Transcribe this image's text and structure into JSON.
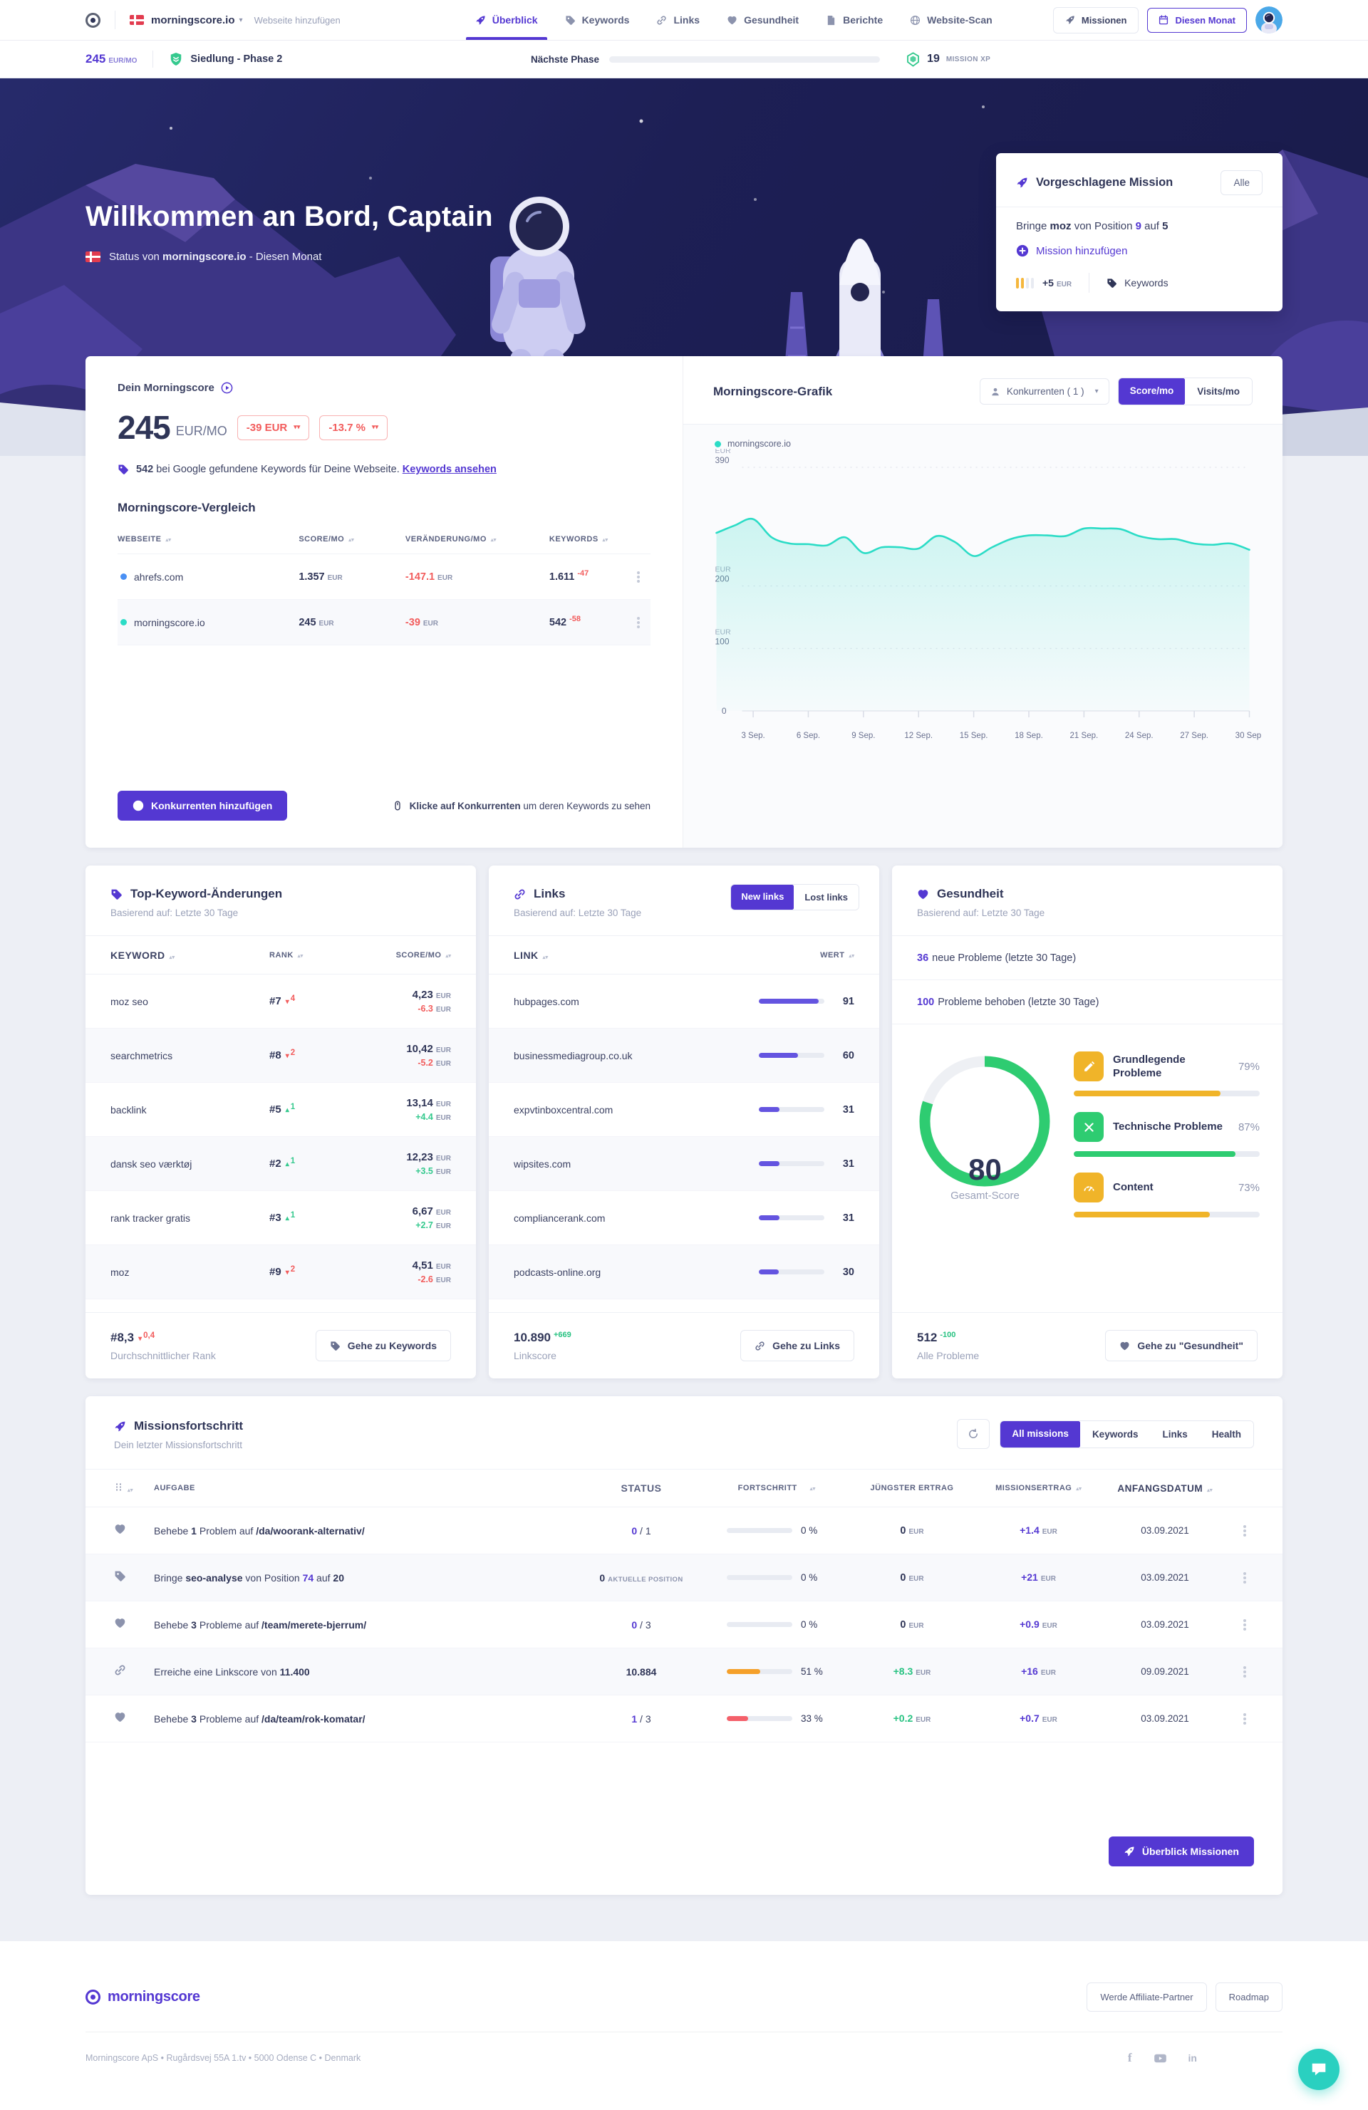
{
  "units": {
    "eur": "EUR"
  },
  "brand": {
    "name": "morningscore.io",
    "add_site": "Webseite hinzufügen",
    "logo_text": "morningscore"
  },
  "topnav": {
    "items": [
      {
        "label": "Überblick",
        "icon": "rocket-icon",
        "active": true
      },
      {
        "label": "Keywords",
        "icon": "tag-icon",
        "active": false
      },
      {
        "label": "Links",
        "icon": "link-icon",
        "active": false
      },
      {
        "label": "Gesundheit",
        "icon": "heart-icon",
        "active": false
      },
      {
        "label": "Berichte",
        "icon": "report-icon",
        "active": false
      },
      {
        "label": "Website-Scan",
        "icon": "globe-icon",
        "active": false
      }
    ],
    "missions_button": "Missionen",
    "month_button": "Diesen Monat"
  },
  "statusbar": {
    "score": "245",
    "score_unit": "EUR/MO",
    "phase": "Siedlung - Phase 2",
    "next_phase_label": "Nächste Phase",
    "next_phase_progress_pct": 13,
    "xp_value": "19",
    "xp_unit": "MISSION XP"
  },
  "hero": {
    "title": "Willkommen an Bord, Captain",
    "subtitle_prefix": "Status von ",
    "subtitle_site": "morningscore.io",
    "subtitle_suffix": " - Diesen Monat"
  },
  "mission_card": {
    "title": "Vorgeschlagene Mission",
    "all_button": "Alle",
    "line": [
      {
        "t": "Bringe "
      },
      {
        "t": "moz",
        "b": 1
      },
      {
        "t": " von Position "
      },
      {
        "t": "9",
        "purple": 1
      },
      {
        "t": " auf "
      },
      {
        "t": "5",
        "b": 1
      }
    ],
    "add_link": "Mission hinzufügen",
    "reward": "+5",
    "reward_unit": "EUR",
    "difficulty": {
      "filled": 2,
      "total": 4
    },
    "category": "Keywords"
  },
  "score_card": {
    "header": "Dein Morningscore",
    "value": "245",
    "unit": "EUR/MO",
    "badges": [
      {
        "label": "-39 EUR"
      },
      {
        "label": "-13.7 %"
      }
    ],
    "keywords_bold": "542",
    "keywords_text": " bei Google gefundene Keywords für Deine Webseite.",
    "keywords_link": "Keywords ansehen",
    "comparison_title": "Morningscore-Vergleich",
    "headers": [
      "WEBSEITE",
      "SCORE/MO",
      "VERÄNDERUNG/MO",
      "KEYWORDS"
    ],
    "rows": [
      {
        "site": "ahrefs.com",
        "dot": "#4a90f4",
        "score": "1.357",
        "change": "-147.1",
        "keywords": "1.611",
        "keywords_delta": "-47"
      },
      {
        "site": "morningscore.io",
        "dot": "#2bdcc6",
        "score": "245",
        "change": "-39",
        "keywords": "542",
        "keywords_delta": "-58"
      }
    ],
    "add_competitor_button": "Konkurrenten hinzufügen",
    "hint_bold": "Klicke auf Konkurrenten",
    "hint_rest": " um deren Keywords zu sehen"
  },
  "graph_card": {
    "title": "Morningscore-Grafik",
    "competitors_dropdown": "Konkurrenten ( 1 )",
    "toggles": [
      {
        "label": "Score/mo",
        "active": true
      },
      {
        "label": "Visits/mo",
        "active": false
      }
    ],
    "legend": "morningscore.io"
  },
  "chart_data": {
    "type": "area",
    "title": "Morningscore-Grafik",
    "xlabel": "",
    "ylabel": "EUR",
    "ylim": [
      0,
      390
    ],
    "y_unit": "EUR",
    "y_gridlines": [
      390,
      200,
      100
    ],
    "grid": "horizontal-dashed",
    "legend_position": "top-left",
    "x_tick_days": [
      3,
      6,
      9,
      12,
      15,
      18,
      21,
      24,
      27,
      30
    ],
    "x_tick_labels": [
      "3 Sep.",
      "6 Sep.",
      "9 Sep.",
      "12 Sep.",
      "15 Sep.",
      "18 Sep.",
      "21 Sep.",
      "24 Sep.",
      "27 Sep.",
      "30 Sep."
    ],
    "series": [
      {
        "name": "morningscore.io",
        "color": "#2bdcc6",
        "values": [
          285,
          297,
          307,
          278,
          268,
          267,
          265,
          278,
          253,
          262,
          262,
          260,
          280,
          270,
          248,
          262,
          275,
          281,
          281,
          280,
          292,
          292,
          291,
          280,
          275,
          275,
          268,
          266,
          268,
          258
        ]
      }
    ]
  },
  "keywords_card": {
    "title": "Top-Keyword-Änderungen",
    "subtitle": "Basierend auf: Letzte 30 Tage",
    "headers": [
      "KEYWORD",
      "RANK",
      "SCORE/MO"
    ],
    "rows": [
      {
        "keyword": "moz seo",
        "rank": "#7",
        "dir": "down",
        "delta": "4",
        "score": "4,23",
        "change": "-6.3"
      },
      {
        "keyword": "searchmetrics",
        "rank": "#8",
        "dir": "down",
        "delta": "2",
        "score": "10,42",
        "change": "-5.2"
      },
      {
        "keyword": "backlink",
        "rank": "#5",
        "dir": "up",
        "delta": "1",
        "score": "13,14",
        "change": "+4.4"
      },
      {
        "keyword": "dansk seo værktøj",
        "rank": "#2",
        "dir": "up",
        "delta": "1",
        "score": "12,23",
        "change": "+3.5"
      },
      {
        "keyword": "rank tracker gratis",
        "rank": "#3",
        "dir": "up",
        "delta": "1",
        "score": "6,67",
        "change": "+2.7"
      },
      {
        "keyword": "moz",
        "rank": "#9",
        "dir": "down",
        "delta": "2",
        "score": "4,51",
        "change": "-2.6"
      }
    ],
    "avg_rank": "#8,3",
    "avg_delta": "0,4",
    "avg_label": "Durchschnittlicher Rank",
    "button": "Gehe zu Keywords"
  },
  "links_card": {
    "title": "Links",
    "subtitle": "Basierend auf: Letzte 30 Tage",
    "toggles": [
      {
        "label": "New links",
        "active": true
      },
      {
        "label": "Lost links",
        "active": false
      }
    ],
    "headers": [
      "LINK",
      "WERT"
    ],
    "rows": [
      {
        "link": "hubpages.com",
        "value": 91
      },
      {
        "link": "businessmediagroup.co.uk",
        "value": 60
      },
      {
        "link": "expvtinboxcentral.com",
        "value": 31
      },
      {
        "link": "wipsites.com",
        "value": 31
      },
      {
        "link": "compliancerank.com",
        "value": 31
      },
      {
        "link": "podcasts-online.org",
        "value": 30
      }
    ],
    "linkscore": "10.890",
    "linkscore_delta": "+669",
    "linkscore_label": "Linkscore",
    "button": "Gehe zu Links"
  },
  "health_card": {
    "title": "Gesundheit",
    "subtitle": "Basierend auf: Letzte 30 Tage",
    "new_problems_value": "36",
    "new_problems_text": "neue Probleme (letzte 30 Tage)",
    "fixed_problems_value": "100",
    "fixed_problems_text": "Probleme behoben (letzte 30 Tage)",
    "score": 80,
    "score_label": "Gesamt-Score",
    "score_color": "#2ecc71",
    "segments": [
      {
        "label": "Grundlegende Probleme",
        "pct": 79,
        "color": "#f0b429",
        "icon": "pencil-icon"
      },
      {
        "label": "Technische Probleme",
        "pct": 87,
        "color": "#2ecc71",
        "icon": "tools-icon"
      },
      {
        "label": "Content",
        "pct": 73,
        "color": "#f0b429",
        "icon": "gauge-icon"
      }
    ],
    "problems_value": "512",
    "problems_delta": "-100",
    "problems_label": "Alle Probleme",
    "button": "Gehe zu \"Gesundheit\""
  },
  "missions_card": {
    "title": "Missionsfortschritt",
    "subtitle": "Dein letzter Missionsfortschritt",
    "filters": [
      {
        "label": "All missions",
        "active": true
      },
      {
        "label": "Keywords",
        "active": false
      },
      {
        "label": "Links",
        "active": false
      },
      {
        "label": "Health",
        "active": false
      }
    ],
    "headers": [
      "AUFGABE",
      "STATUS",
      "FORTSCHRITT",
      "JÜNGSTER ERTRAG",
      "MISSIONSERTRAG",
      "ANFANGSDATUM"
    ],
    "rows": [
      {
        "icon": "heart-icon",
        "task": [
          {
            "t": "Behebe "
          },
          {
            "t": "1",
            "b": 1
          },
          {
            "t": " Problem auf "
          },
          {
            "t": "/da/woorank-alternativ/",
            "b": 1
          }
        ],
        "status": [
          {
            "t": "0",
            "purple": 1
          },
          {
            "t": " / 1"
          }
        ],
        "progress": 0,
        "progress_label": "0 %",
        "bar_color": "",
        "recent": "0",
        "recent_color": "dark",
        "mission": "+1.4",
        "date": "03.09.2021"
      },
      {
        "icon": "tag-icon",
        "task": [
          {
            "t": "Bringe "
          },
          {
            "t": "seo-analyse",
            "b": 1
          },
          {
            "t": " von Position "
          },
          {
            "t": "74",
            "purple": 1
          },
          {
            "t": " auf "
          },
          {
            "t": "20",
            "b": 1
          }
        ],
        "status": [
          {
            "t": "0 ",
            "b": 1
          },
          {
            "t": "AKTUELLE POSITION",
            "small": 1
          }
        ],
        "progress": 0,
        "progress_label": "0 %",
        "bar_color": "",
        "recent": "0",
        "recent_color": "dark",
        "mission": "+21",
        "date": "03.09.2021"
      },
      {
        "icon": "heart-icon",
        "task": [
          {
            "t": "Behebe "
          },
          {
            "t": "3",
            "b": 1
          },
          {
            "t": " Probleme auf "
          },
          {
            "t": "/team/merete-bjerrum/",
            "b": 1
          }
        ],
        "status": [
          {
            "t": "0",
            "purple": 1
          },
          {
            "t": " / 3"
          }
        ],
        "progress": 0,
        "progress_label": "0 %",
        "bar_color": "",
        "recent": "0",
        "recent_color": "dark",
        "mission": "+0.9",
        "date": "03.09.2021"
      },
      {
        "icon": "link-icon",
        "task": [
          {
            "t": "Erreiche eine Linkscore von "
          },
          {
            "t": "11.400",
            "b": 1
          }
        ],
        "status": [
          {
            "t": "10.884",
            "b": 1
          }
        ],
        "progress": 51,
        "progress_label": "51 %",
        "bar_color": "#f5a02a",
        "recent": "+8.3",
        "recent_color": "green",
        "mission": "+16",
        "date": "09.09.2021"
      },
      {
        "icon": "heart-icon",
        "task": [
          {
            "t": "Behebe "
          },
          {
            "t": "3",
            "b": 1
          },
          {
            "t": " Probleme auf "
          },
          {
            "t": "/da/team/rok-komatar/",
            "b": 1
          }
        ],
        "status": [
          {
            "t": "1",
            "purple": 1
          },
          {
            "t": " / 3"
          }
        ],
        "progress": 33,
        "progress_label": "33 %",
        "bar_color": "#f4606a",
        "recent": "+0.2",
        "recent_color": "green",
        "mission": "+0.7",
        "date": "03.09.2021"
      }
    ],
    "overview_button": "Überblick Missionen"
  },
  "footer": {
    "logo_text": "morningscore",
    "affiliate_button": "Werde Affiliate-Partner",
    "roadmap_button": "Roadmap",
    "address": "Morningscore ApS • Rugårdsvej 55A 1.tv • 5000 Odense C • Denmark"
  }
}
